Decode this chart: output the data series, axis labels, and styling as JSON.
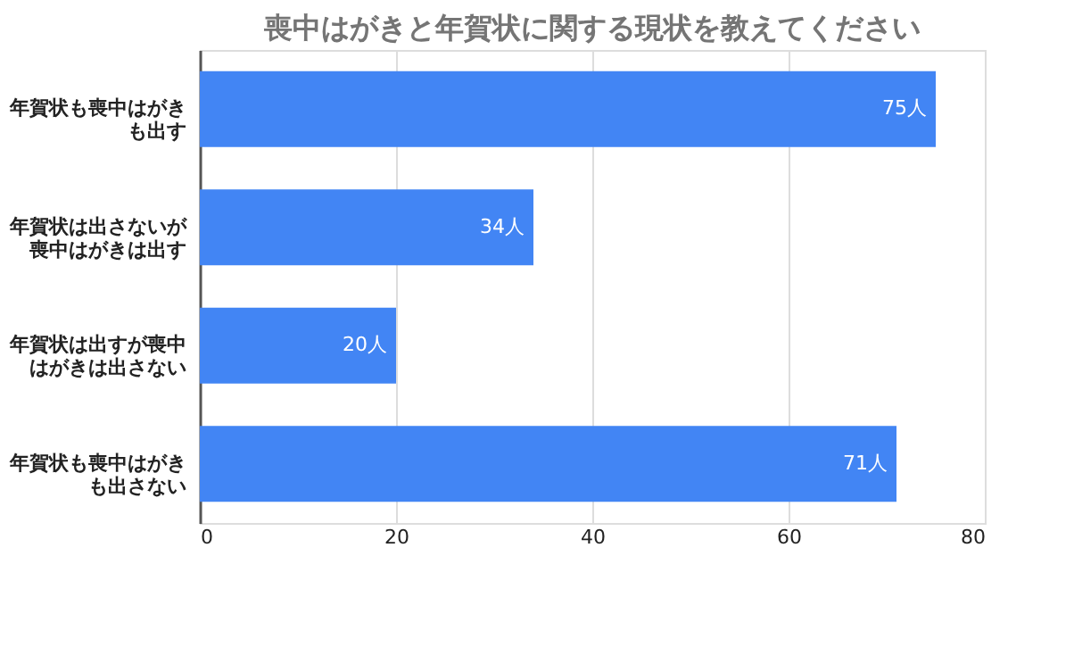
{
  "chart_data": {
    "type": "bar",
    "orientation": "horizontal",
    "title": "喪中はがきと年賀状に関する現状を教えてください",
    "categories": [
      "年賀状も喪中はがきも出す",
      "年賀状は出さないが喪中はがきは出す",
      "年賀状は出すが喪中はがきは出さない",
      "年賀状も喪中はがきも出さない"
    ],
    "values": [
      75,
      34,
      20,
      71
    ],
    "value_labels": [
      "75人",
      "34人",
      "20人",
      "71人"
    ],
    "color": "#4285f4",
    "xlim": [
      0,
      80
    ],
    "xticks": [
      0,
      20,
      40,
      60,
      80
    ],
    "grid": "x"
  }
}
